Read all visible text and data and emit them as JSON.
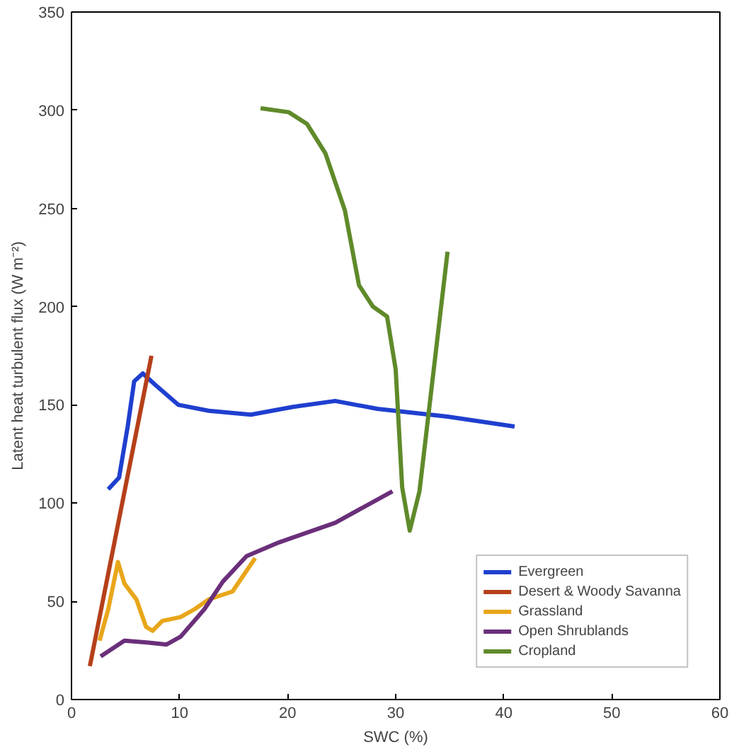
{
  "chart_data": {
    "type": "line",
    "xlabel": "SWC (%)",
    "ylabel": "Latent heat turbulent flux (W m⁻²)",
    "xlim": [
      0,
      60
    ],
    "ylim": [
      0,
      350
    ],
    "xticks": [
      0,
      10,
      20,
      30,
      40,
      50,
      60
    ],
    "yticks": [
      0,
      50,
      100,
      150,
      200,
      250,
      300,
      350
    ],
    "grid": false,
    "legend": "bottom right",
    "series": [
      {
        "name": "Evergreen",
        "color": "#1f3fcf",
        "x": [
          3.4,
          4.4,
          5.2,
          5.8,
          6.6,
          7.8,
          9.9,
          12.7,
          16.6,
          20.5,
          24.4,
          28.3,
          34.8,
          41
        ],
        "values": [
          107,
          113,
          139,
          162,
          166,
          160,
          150,
          147,
          145,
          149,
          152,
          148,
          144,
          139
        ]
      },
      {
        "name": "Desert & Woody Savanna",
        "color": "#b5401a",
        "x": [
          1.7,
          7.4
        ],
        "values": [
          17,
          175
        ]
      },
      {
        "name": "Grassland",
        "color": "#e8a61a",
        "x": [
          2.6,
          3.4,
          4.3,
          4.9,
          6,
          6.9,
          7.5,
          8.4,
          10.1,
          11.4,
          12.7,
          14.9,
          17
        ],
        "values": [
          30,
          46,
          70,
          59,
          51,
          37,
          35,
          40,
          42,
          46,
          51,
          55,
          72
        ]
      },
      {
        "name": "Open Shrublands",
        "color": "#6a2f7a",
        "x": [
          2.7,
          4.9,
          7.1,
          8.8,
          10.1,
          12.3,
          14,
          16.2,
          19.2,
          24.4,
          29.7
        ],
        "values": [
          22,
          30,
          29,
          28,
          32,
          46,
          60,
          73,
          80,
          90,
          106
        ]
      },
      {
        "name": "Cropland",
        "color": "#5f8a2a",
        "x": [
          17.5,
          20.1,
          21.8,
          23.5,
          25.3,
          26.6,
          27.9,
          29.2,
          30,
          30.6,
          31.3,
          32.2,
          34.8
        ],
        "values": [
          301,
          299,
          293,
          278,
          249,
          211,
          200,
          195,
          168,
          108,
          86,
          106,
          228
        ]
      }
    ]
  }
}
